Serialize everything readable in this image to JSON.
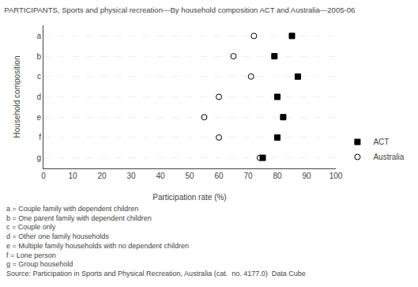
{
  "chart_data": {
    "type": "dot",
    "title": "PARTICIPANTS, Sports and physical recreation—By household composition ACT and Australia—2005-06",
    "xlabel": "Participation rate (%)",
    "ylabel": "Household composition",
    "orientation": "horizontal",
    "categories": [
      "a",
      "b",
      "c",
      "d",
      "e",
      "f",
      "g"
    ],
    "series": [
      {
        "name": "ACT",
        "color": "#000000",
        "marker": "square",
        "values": [
          85,
          79,
          87,
          80,
          82,
          80,
          75
        ]
      },
      {
        "name": "Australia",
        "color": "#000000",
        "marker": "circle-open",
        "values": [
          72,
          65,
          71,
          60,
          55,
          60,
          74
        ]
      }
    ],
    "xlim": [
      0,
      100
    ],
    "xticks": [
      0,
      10,
      20,
      30,
      40,
      50,
      60,
      70,
      80,
      90,
      100
    ],
    "grid": "y",
    "legend": "lower right",
    "annotations": [
      "a = Couple family with dependent children",
      "b = One parent family with dependent children",
      "c = Couple only",
      "d = Other one family households",
      "e = Multiple family households with no dependent children",
      "f = Lone person",
      "g = Group household",
      "Source: Participation in Sports and Physical Recreation, Australia (cat.  no. 4177.0)  Data Cube"
    ]
  }
}
